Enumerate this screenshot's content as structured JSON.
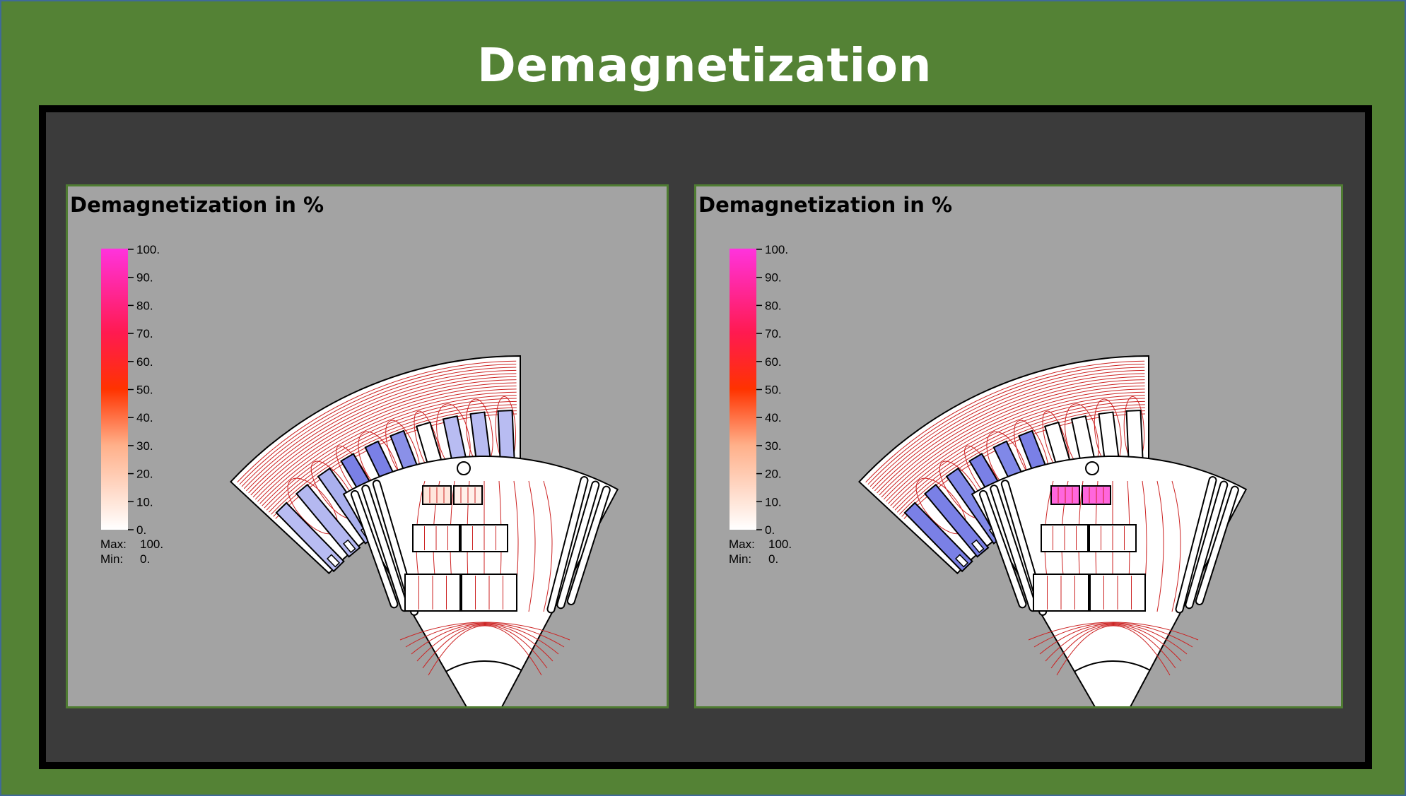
{
  "slide": {
    "title": "Demagnetization",
    "colors": {
      "background": "#548235",
      "frame": "#3b3b3b",
      "panel": "#a3a3a3",
      "contour": "#cc2222"
    }
  },
  "panels": [
    {
      "plot_title": "Demagnetization in %",
      "legend": {
        "ticks": [
          "100.",
          "90.",
          "80.",
          "70.",
          "60.",
          "50.",
          "40.",
          "30.",
          "20.",
          "10.",
          "0."
        ],
        "max_label": "Max:",
        "max_value": "100.",
        "min_label": "Min:",
        "min_value": "0."
      },
      "stator_slot_fills": [
        "#b8bcf2",
        "#b4b8f0",
        "#aab0ee",
        "#7a80e6",
        "#7a80e6",
        "#8a90e8",
        "#ffffff",
        "#b8bcf2",
        "#b8bcf2",
        "#b8bcf2"
      ],
      "magnet_fills": [
        "#ffe6dc",
        "#fff0ea",
        "#ffffff",
        "#ffffff",
        "#ffffff",
        "#ffffff"
      ]
    },
    {
      "plot_title": "Demagnetization in %",
      "legend": {
        "ticks": [
          "100.",
          "90.",
          "80.",
          "70.",
          "60.",
          "50.",
          "40.",
          "30.",
          "20.",
          "10.",
          "0."
        ],
        "max_label": "Max:",
        "max_value": "100.",
        "min_label": "Min:",
        "min_value": "0."
      },
      "stator_slot_fills": [
        "#7a80e6",
        "#7a80e6",
        "#8088e8",
        "#7a80e6",
        "#8088e8",
        "#7a80e6",
        "#ffffff",
        "#ffffff",
        "#ffffff",
        "#ffffff"
      ],
      "magnet_fills": [
        "#ff66dd",
        "#ff66dd",
        "#ffffff",
        "#ffffff",
        "#ffffff",
        "#ffffff"
      ]
    }
  ]
}
